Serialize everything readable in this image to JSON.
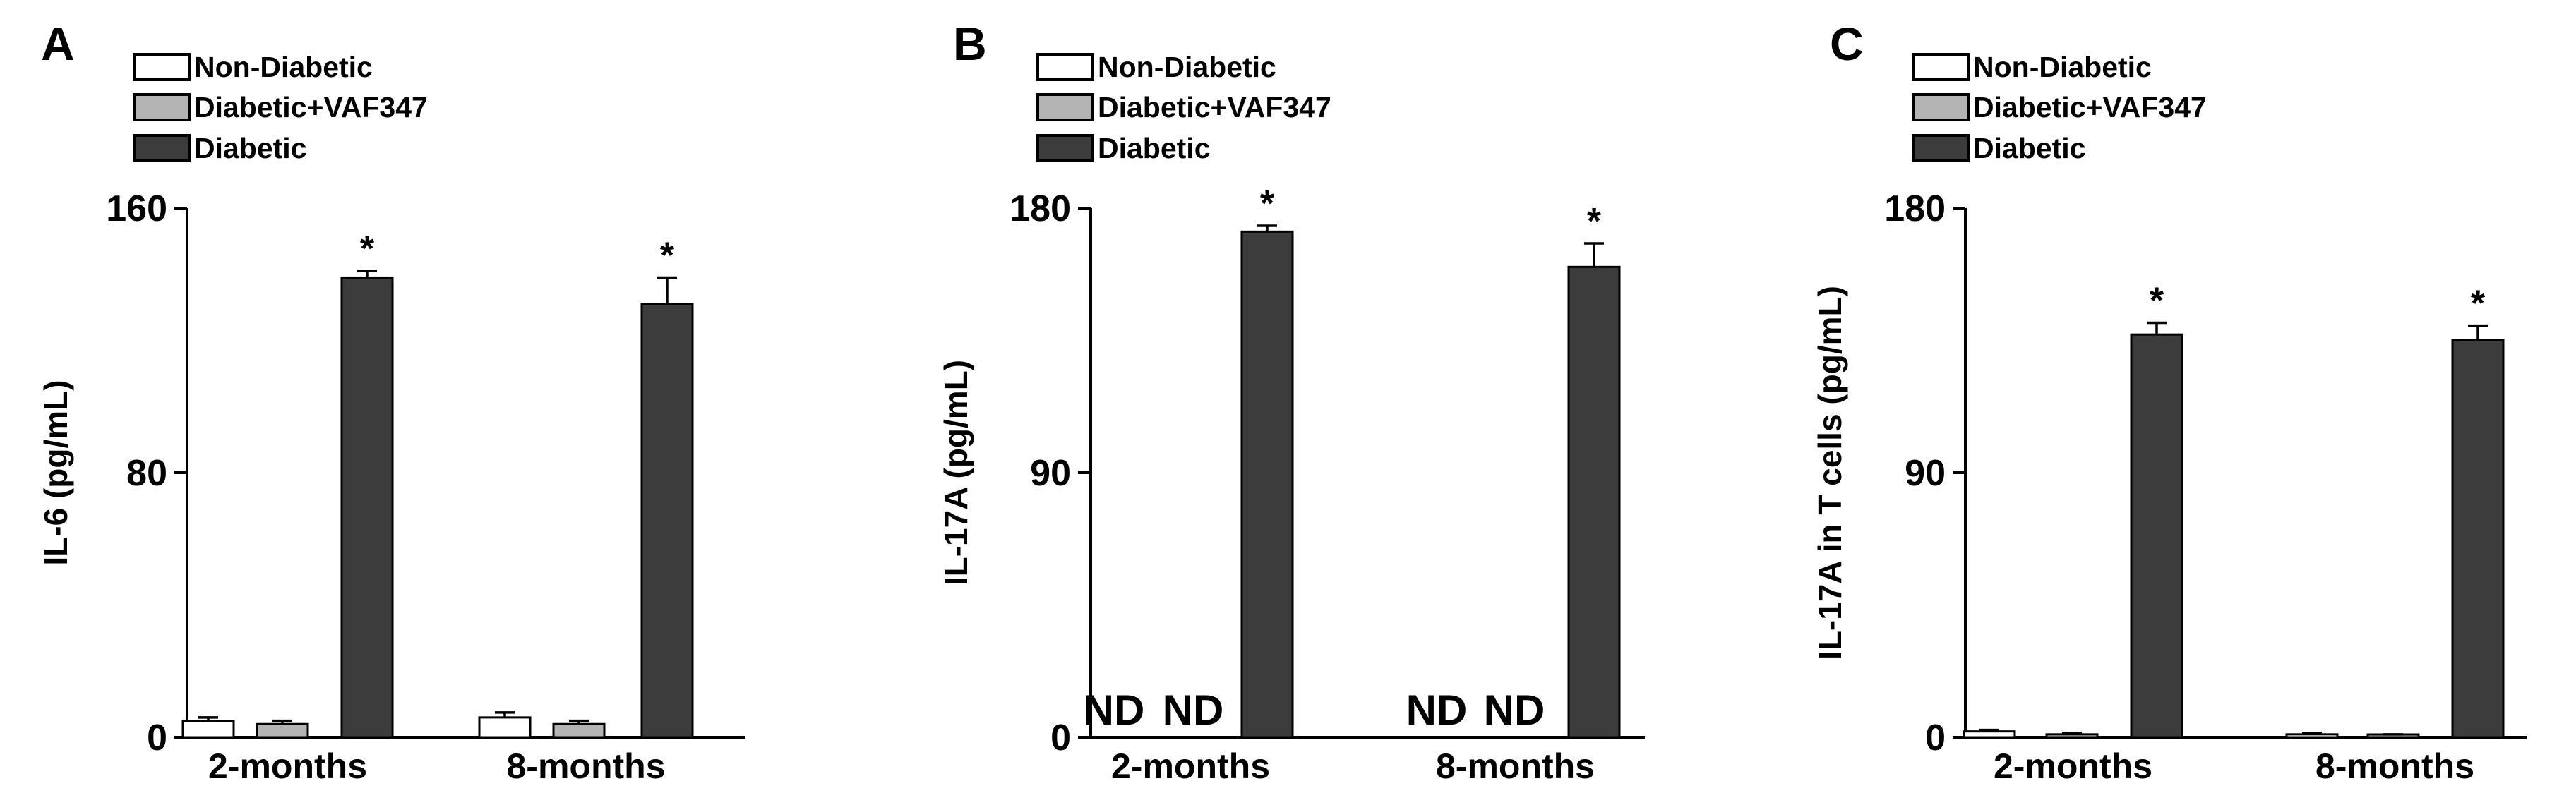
{
  "chart_data": [
    {
      "panel": "A",
      "type": "bar",
      "categories": [
        "2-months",
        "8-months"
      ],
      "ylabel": "IL-6 (pg/mL)",
      "ylim": [
        0,
        160
      ],
      "yticks": [
        "0",
        "80",
        "160"
      ],
      "series": [
        {
          "name": "Non-Diabetic",
          "color": "#ffffff",
          "values": [
            5,
            6
          ],
          "errors": [
            1,
            1.5
          ]
        },
        {
          "name": "Diabetic+VAF347",
          "color": "#b4b4b4",
          "values": [
            4,
            4
          ],
          "errors": [
            1,
            1
          ]
        },
        {
          "name": "Diabetic",
          "color": "#3c3c3c",
          "values": [
            139,
            131
          ],
          "errors": [
            2,
            8
          ]
        }
      ],
      "annotations": [
        {
          "category": "2-months",
          "series": "Diabetic",
          "text": "*"
        },
        {
          "category": "8-months",
          "series": "Diabetic",
          "text": "*"
        }
      ]
    },
    {
      "panel": "B",
      "type": "bar",
      "categories": [
        "2-months",
        "8-months"
      ],
      "ylabel": "IL-17A (pg/mL)",
      "ylim": [
        0,
        180
      ],
      "yticks": [
        "0",
        "90",
        "180"
      ],
      "series": [
        {
          "name": "Non-Diabetic",
          "color": "#ffffff",
          "values": [
            null,
            null
          ],
          "errors": [
            null,
            null
          ],
          "labels": [
            "ND",
            "ND"
          ]
        },
        {
          "name": "Diabetic+VAF347",
          "color": "#b4b4b4",
          "values": [
            null,
            null
          ],
          "errors": [
            null,
            null
          ],
          "labels": [
            "ND",
            "ND"
          ]
        },
        {
          "name": "Diabetic",
          "color": "#3c3c3c",
          "values": [
            172,
            160
          ],
          "errors": [
            2,
            8
          ]
        }
      ],
      "annotations": [
        {
          "category": "2-months",
          "series": "Diabetic",
          "text": "*"
        },
        {
          "category": "8-months",
          "series": "Diabetic",
          "text": "*"
        }
      ]
    },
    {
      "panel": "C",
      "type": "bar",
      "categories": [
        "2-months",
        "8-months"
      ],
      "ylabel": "IL-17A in T cells (pg/mL)",
      "ylim": [
        0,
        180
      ],
      "yticks": [
        "0",
        "90",
        "180"
      ],
      "series": [
        {
          "name": "Non-Diabetic",
          "color": "#ffffff",
          "values": [
            2,
            1
          ],
          "errors": [
            0.5,
            0.5
          ]
        },
        {
          "name": "Diabetic+VAF347",
          "color": "#b4b4b4",
          "values": [
            1,
            0.5
          ],
          "errors": [
            0.5,
            0.5
          ]
        },
        {
          "name": "Diabetic",
          "color": "#3c3c3c",
          "values": [
            137,
            135
          ],
          "errors": [
            4,
            5
          ]
        }
      ],
      "annotations": [
        {
          "category": "2-months",
          "series": "Diabetic",
          "text": "*"
        },
        {
          "category": "8-months",
          "series": "Diabetic",
          "text": "*"
        }
      ]
    }
  ]
}
